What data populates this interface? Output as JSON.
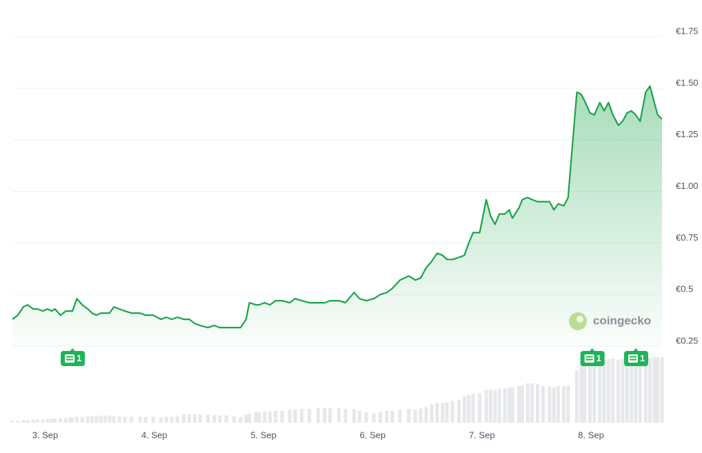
{
  "chart_data": {
    "type": "line",
    "x": [
      2.7,
      2.75,
      2.8,
      2.84,
      2.89,
      2.93,
      2.98,
      3.02,
      3.06,
      3.09,
      3.14,
      3.19,
      3.23,
      3.25,
      3.29,
      3.34,
      3.39,
      3.43,
      3.47,
      3.51,
      3.55,
      3.59,
      3.63,
      3.68,
      3.73,
      3.79,
      3.87,
      3.92,
      3.99,
      4.06,
      4.11,
      4.16,
      4.21,
      4.27,
      4.32,
      4.37,
      4.42,
      4.49,
      4.55,
      4.6,
      4.66,
      4.73,
      4.79,
      4.84,
      4.87,
      4.93,
      4.96,
      5.01,
      5.06,
      5.11,
      5.17,
      5.24,
      5.29,
      5.35,
      5.42,
      5.5,
      5.56,
      5.61,
      5.69,
      5.75,
      5.83,
      5.88,
      5.94,
      6.01,
      6.07,
      6.13,
      6.18,
      6.25,
      6.33,
      6.39,
      6.44,
      6.49,
      6.54,
      6.59,
      6.64,
      6.68,
      6.73,
      6.79,
      6.84,
      6.88,
      6.92,
      6.98,
      7.04,
      7.08,
      7.12,
      7.16,
      7.21,
      7.25,
      7.28,
      7.34,
      7.37,
      7.42,
      7.46,
      7.51,
      7.56,
      7.62,
      7.66,
      7.7,
      7.75,
      7.79,
      7.87,
      7.91,
      7.94,
      7.99,
      8.03,
      8.08,
      8.12,
      8.16,
      8.2,
      8.25,
      8.29,
      8.33,
      8.37,
      8.41,
      8.45,
      8.5,
      8.54,
      8.58,
      8.61,
      8.65
    ],
    "values": [
      0.38,
      0.4,
      0.44,
      0.45,
      0.43,
      0.43,
      0.42,
      0.43,
      0.42,
      0.43,
      0.4,
      0.42,
      0.42,
      0.42,
      0.48,
      0.45,
      0.43,
      0.41,
      0.4,
      0.41,
      0.41,
      0.41,
      0.44,
      0.43,
      0.42,
      0.41,
      0.41,
      0.4,
      0.4,
      0.38,
      0.39,
      0.38,
      0.39,
      0.38,
      0.38,
      0.36,
      0.35,
      0.34,
      0.35,
      0.34,
      0.34,
      0.34,
      0.34,
      0.38,
      0.46,
      0.45,
      0.45,
      0.46,
      0.45,
      0.47,
      0.47,
      0.46,
      0.48,
      0.47,
      0.46,
      0.46,
      0.46,
      0.47,
      0.47,
      0.46,
      0.51,
      0.48,
      0.47,
      0.48,
      0.5,
      0.51,
      0.53,
      0.57,
      0.59,
      0.57,
      0.58,
      0.63,
      0.66,
      0.7,
      0.69,
      0.67,
      0.67,
      0.68,
      0.69,
      0.75,
      0.8,
      0.8,
      0.96,
      0.88,
      0.84,
      0.89,
      0.89,
      0.91,
      0.87,
      0.92,
      0.96,
      0.97,
      0.96,
      0.95,
      0.95,
      0.95,
      0.91,
      0.94,
      0.93,
      0.97,
      1.48,
      1.47,
      1.44,
      1.38,
      1.37,
      1.43,
      1.39,
      1.43,
      1.37,
      1.32,
      1.34,
      1.38,
      1.39,
      1.37,
      1.34,
      1.48,
      1.51,
      1.43,
      1.37,
      1.35
    ],
    "color": "#1aa34a",
    "volume": {
      "axis": "y2",
      "color": "#e6e8eb",
      "values": [
        3,
        3,
        4,
        4,
        5,
        5,
        5,
        6,
        6,
        6,
        7,
        7,
        8,
        8,
        9,
        9,
        10,
        10,
        11,
        10,
        10,
        11,
        10,
        10,
        9,
        9,
        9,
        9,
        9,
        8,
        9,
        9,
        10,
        13,
        13,
        13,
        12,
        12,
        12,
        11,
        11,
        10,
        9,
        12,
        14,
        16,
        16,
        17,
        17,
        18,
        18,
        20,
        20,
        21,
        21,
        22,
        22,
        22,
        22,
        21,
        20,
        18,
        16,
        15,
        17,
        18,
        18,
        20,
        21,
        20,
        22,
        24,
        28,
        30,
        30,
        31,
        33,
        35,
        40,
        42,
        44,
        45,
        50,
        51,
        50,
        52,
        52,
        53,
        54,
        56,
        57,
        60,
        60,
        59,
        56,
        55,
        54,
        56,
        56,
        57,
        80,
        90,
        96,
        97,
        98,
        97,
        96,
        97,
        98,
        96,
        97,
        98,
        99,
        98,
        97,
        98,
        99,
        100,
        100,
        100
      ]
    },
    "xlim": [
      2.7,
      8.65
    ],
    "xticks": [
      {
        "value": 3,
        "label": "3. Sep"
      },
      {
        "value": 4,
        "label": "4. Sep"
      },
      {
        "value": 5,
        "label": "5. Sep"
      },
      {
        "value": 6,
        "label": "6. Sep"
      },
      {
        "value": 7,
        "label": "7. Sep"
      },
      {
        "value": 8,
        "label": "8. Sep"
      }
    ],
    "ylim": [
      0.25,
      1.75
    ],
    "yticks": [
      {
        "value": 0.25,
        "label": "€0.25"
      },
      {
        "value": 0.5,
        "label": "€0.5"
      },
      {
        "value": 0.75,
        "label": "€0.75"
      },
      {
        "value": 1,
        "label": "€1.00"
      },
      {
        "value": 1.25,
        "label": "€1.25"
      },
      {
        "value": 1.5,
        "label": "€1.50"
      },
      {
        "value": 1.75,
        "label": "€1.75"
      }
    ],
    "y2lim": [
      0,
      100
    ],
    "grid": true,
    "annotations": [
      {
        "x": 3.25,
        "label": "1"
      },
      {
        "x": 8.01,
        "label": "1"
      },
      {
        "x": 8.41,
        "label": "1"
      }
    ],
    "watermark": "coingecko"
  }
}
